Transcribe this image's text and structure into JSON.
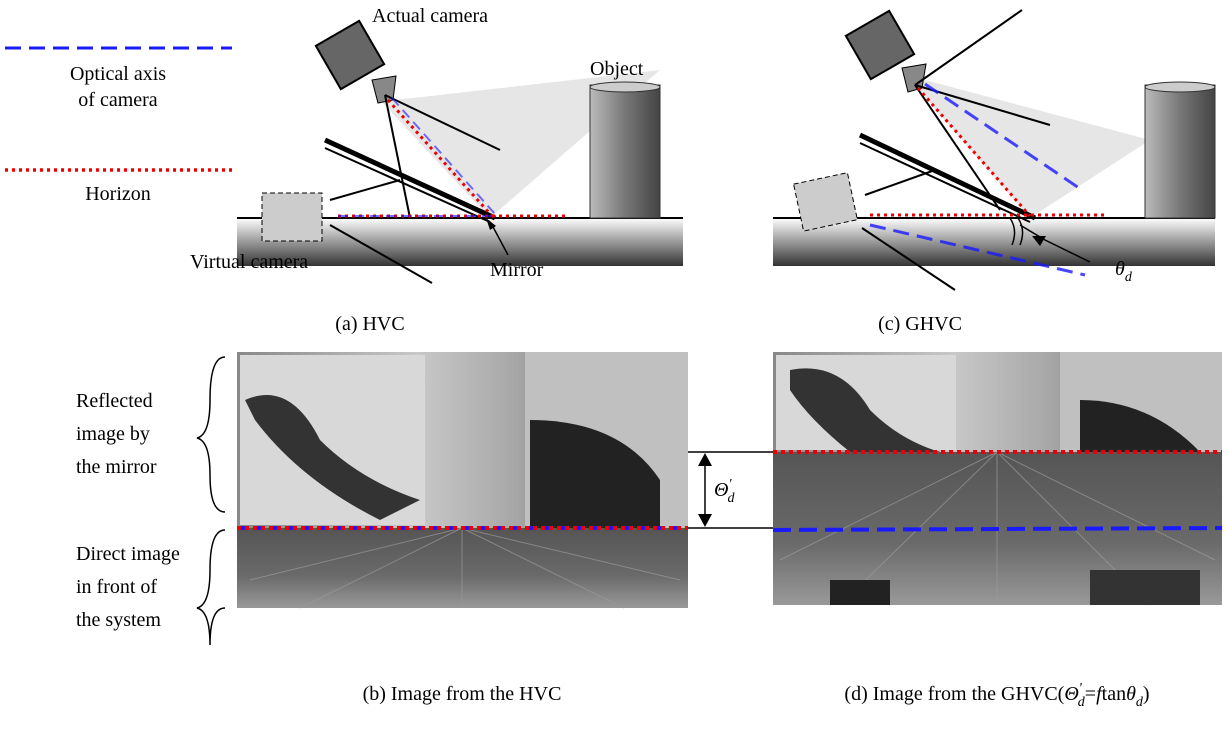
{
  "legend": [
    {
      "label": [
        "Optical axis",
        "of camera"
      ]
    },
    {
      "label": [
        "Horizon"
      ]
    }
  ],
  "panel_a": {
    "labels": {
      "actual_camera": "Actual camera",
      "object": "Object",
      "virtual_camera": "Virtual camera",
      "mirror": "Mirror"
    },
    "caption": "(a) HVC"
  },
  "panel_c": {
    "theta": {
      "symbol": "θ",
      "subscript": "d"
    },
    "caption": "(c) GHVC"
  },
  "panel_b": {
    "reflected_label": [
      "Reflected",
      "image by",
      "the mirror"
    ],
    "direct_label": [
      "Direct image",
      "in front of",
      "the system"
    ],
    "theta_prime": {
      "symbol": "Θ",
      "superscript": "'",
      "subscript": "d"
    },
    "caption": "(b) Image from the HVC"
  },
  "panel_d": {
    "caption_parts": [
      "(d) Image from the GHVC(",
      "Θ",
      "'",
      "d",
      "=",
      "f",
      "tan",
      "θ",
      "d",
      ")"
    ]
  }
}
